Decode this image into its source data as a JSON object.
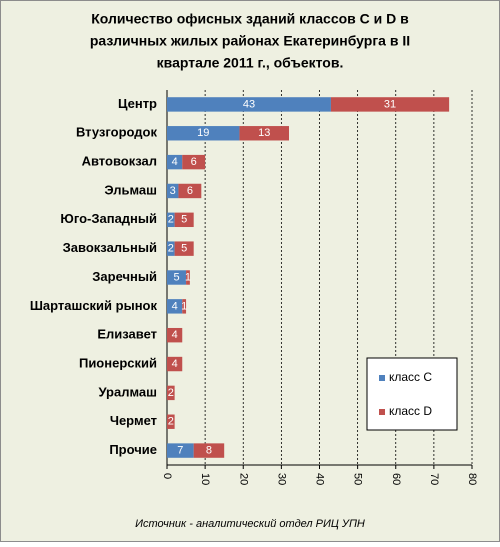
{
  "chart_data": {
    "type": "stacked-barh",
    "title": [
      "Количество офисных зданий классов С и D в",
      "различных жилых районах Екатеринбурга в II",
      "квартале 2011 г., объектов."
    ],
    "categories": [
      "Центр",
      "Втузгородок",
      "Автовокзал",
      "Эльмаш",
      "Юго-Западный",
      "Завокзальный",
      "Заречный",
      "Шарташский рынок",
      "Елизавет",
      "Пионерский",
      "Уралмаш",
      "Чермет",
      "Прочие"
    ],
    "series": [
      {
        "name": "класс С",
        "color": "#4f81bd",
        "values": [
          43,
          19,
          4,
          3,
          2,
          2,
          5,
          4,
          null,
          null,
          null,
          null,
          7
        ]
      },
      {
        "name": "класс D",
        "color": "#c0504d",
        "values": [
          31,
          13,
          6,
          6,
          5,
          5,
          1,
          1,
          4,
          4,
          2,
          2,
          8
        ]
      }
    ],
    "xlim": [
      0,
      80
    ],
    "xticks": [
      0,
      10,
      20,
      30,
      40,
      50,
      60,
      70,
      80
    ],
    "grid": true,
    "legend": "lower right",
    "source": "Источник - аналитический отдел РИЦ УПН"
  }
}
